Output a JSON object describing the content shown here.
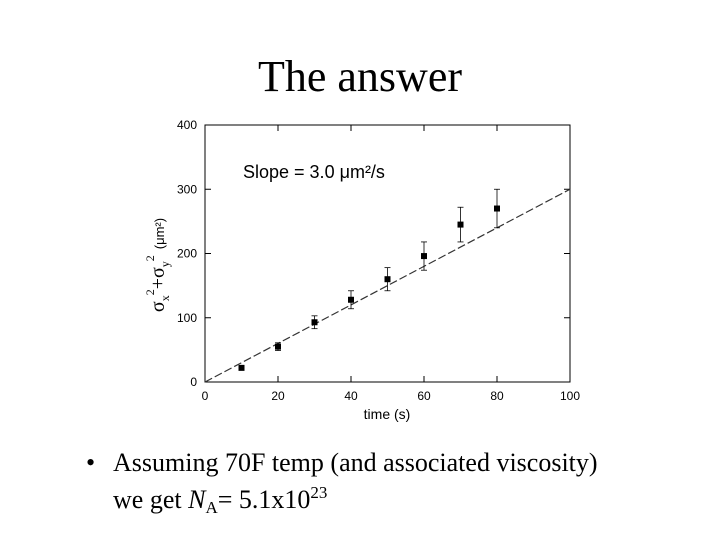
{
  "slide": {
    "title": "The answer",
    "bullet_char": "•",
    "bullet": {
      "line1": "Assuming 70F temp (and associated viscosity)",
      "line2_prefix": "we get ",
      "n_symbol": "N",
      "n_subscript": "A",
      "equals_value": "= 5.1x10",
      "exponent": "23"
    }
  },
  "chart_data": {
    "type": "scatter",
    "title": "",
    "xlabel": "time (s)",
    "ylabel_parts": {
      "sigma_x": "σ",
      "x_sub": "x",
      "x_sup": "2",
      "plus": "+",
      "sigma_y": "σ",
      "y_sub": "y",
      "y_sup": "2",
      "units": "(μm²)"
    },
    "xlim": [
      0,
      100
    ],
    "ylim": [
      0,
      400
    ],
    "xticks": [
      0,
      20,
      40,
      60,
      80,
      100
    ],
    "yticks": [
      0,
      100,
      200,
      300,
      400
    ],
    "grid": false,
    "annotation": "Slope = 3.0 μm²/s",
    "series": [
      {
        "points": [
          {
            "x": 10,
            "y": 22,
            "err": 0
          },
          {
            "x": 20,
            "y": 55,
            "err": 6
          },
          {
            "x": 30,
            "y": 93,
            "err": 10
          },
          {
            "x": 40,
            "y": 128,
            "err": 14
          },
          {
            "x": 50,
            "y": 160,
            "err": 18
          },
          {
            "x": 60,
            "y": 196,
            "err": 22
          },
          {
            "x": 70,
            "y": 245,
            "err": 27
          },
          {
            "x": 80,
            "y": 270,
            "err": 30
          }
        ]
      }
    ],
    "fit_line": {
      "x": [
        0,
        100
      ],
      "y": [
        0,
        300
      ]
    }
  }
}
